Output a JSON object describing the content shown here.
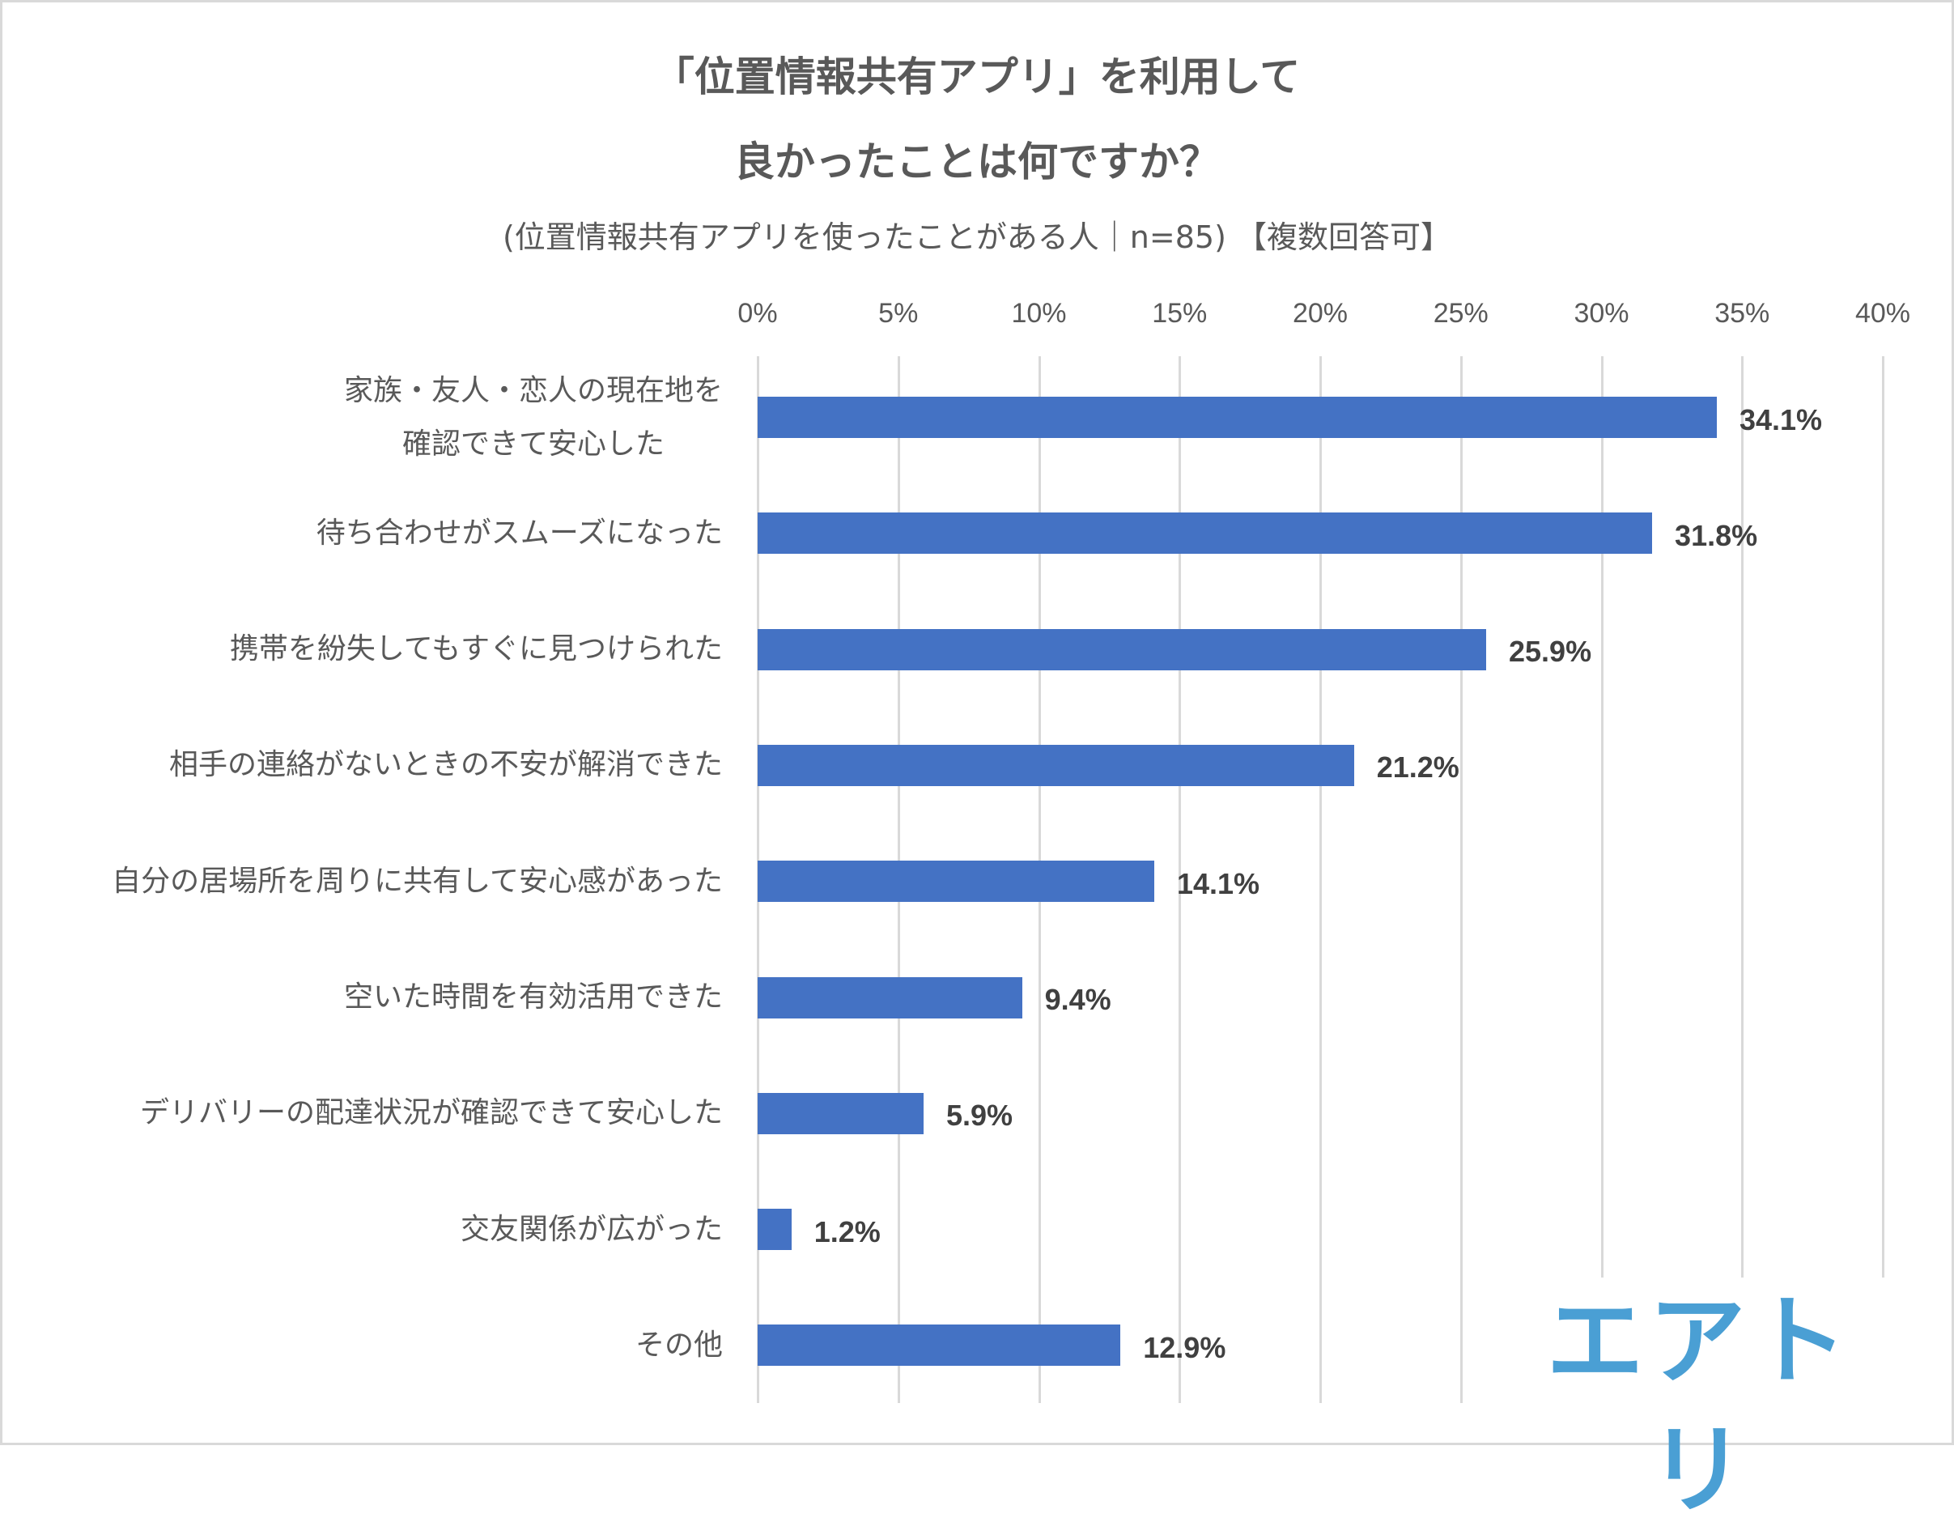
{
  "chart_data": {
    "type": "bar",
    "orientation": "horizontal",
    "title_lines": [
      "「位置情報共有アプリ」を利用して",
      "良かったことは何ですか？"
    ],
    "subtitle": "(位置情報共有アプリを使ったことがある人｜n=85) 【複数回答可】",
    "xlim": [
      0,
      40
    ],
    "x_ticks": [
      "0%",
      "5%",
      "10%",
      "15%",
      "20%",
      "25%",
      "30%",
      "35%",
      "40%"
    ],
    "grid": true,
    "categories": [
      [
        "家族・友人・恋人の現在地を",
        "確認できて安心した"
      ],
      [
        "待ち合わせがスムーズになった"
      ],
      [
        "携帯を紛失してもすぐに見つけられた"
      ],
      [
        "相手の連絡がないときの不安が解消できた"
      ],
      [
        "自分の居場所を周りに共有して安心感があった"
      ],
      [
        "空いた時間を有効活用できた"
      ],
      [
        "デリバリーの配達状況が確認できて安心した"
      ],
      [
        "交友関係が広がった"
      ],
      [
        "その他"
      ]
    ],
    "values": [
      34.1,
      31.8,
      25.9,
      21.2,
      14.1,
      9.4,
      5.9,
      1.2,
      12.9
    ],
    "value_labels": [
      "34.1%",
      "31.8%",
      "25.9%",
      "21.2%",
      "14.1%",
      "9.4%",
      "5.9%",
      "1.2%",
      "12.9%"
    ],
    "bar_color": "#4472c4"
  },
  "logo": {
    "text": "エアトリ",
    "color": "#4a9fd4"
  }
}
